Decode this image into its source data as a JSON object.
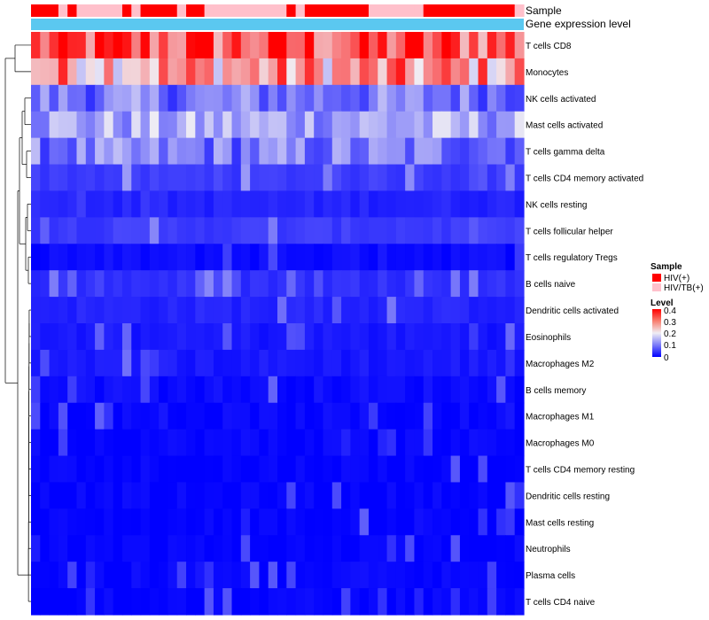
{
  "chart_data": {
    "type": "heatmap",
    "title": "",
    "annotation_tracks": [
      {
        "name": "Sample"
      },
      {
        "name": "Gene expression level"
      }
    ],
    "sample_groups": [
      "HIV(+)",
      "HIV(+)",
      "HIV(+)",
      "HIV/TB(+)",
      "HIV(+)",
      "HIV/TB(+)",
      "HIV/TB(+)",
      "HIV/TB(+)",
      "HIV/TB(+)",
      "HIV/TB(+)",
      "HIV(+)",
      "HIV/TB(+)",
      "HIV(+)",
      "HIV(+)",
      "HIV(+)",
      "HIV(+)",
      "HIV/TB(+)",
      "HIV(+)",
      "HIV(+)",
      "HIV/TB(+)",
      "HIV/TB(+)",
      "HIV/TB(+)",
      "HIV/TB(+)",
      "HIV/TB(+)",
      "HIV/TB(+)",
      "HIV/TB(+)",
      "HIV/TB(+)",
      "HIV/TB(+)",
      "HIV(+)",
      "HIV/TB(+)",
      "HIV(+)",
      "HIV(+)",
      "HIV(+)",
      "HIV(+)",
      "HIV(+)",
      "HIV(+)",
      "HIV(+)",
      "HIV/TB(+)",
      "HIV/TB(+)",
      "HIV/TB(+)",
      "HIV/TB(+)",
      "HIV/TB(+)",
      "HIV/TB(+)",
      "HIV(+)",
      "HIV(+)",
      "HIV(+)",
      "HIV(+)",
      "HIV(+)",
      "HIV(+)",
      "HIV(+)",
      "HIV(+)",
      "HIV(+)",
      "HIV(+)",
      "HIV/TB(+)"
    ],
    "rows": [
      "T cells CD8",
      "Monocytes",
      "NK cells activated",
      "Mast cells activated",
      "T cells gamma delta",
      "T cells CD4 memory activated",
      "NK cells resting",
      "T cells follicular helper",
      "T cells regulatory  Tregs",
      "B cells naive",
      "Dendritic cells activated",
      "Eosinophils",
      "Macrophages M2",
      "B cells memory",
      "Macrophages M1",
      "Macrophages M0",
      "T cells CD4 memory resting",
      "Dendritic cells resting",
      "Mast cells resting",
      "Neutrophils",
      "Plasma cells",
      "T cells CD4 naive"
    ],
    "n_columns": 54,
    "row_levels": [
      0.33,
      0.27,
      0.1,
      0.14,
      0.1,
      0.05,
      0.03,
      0.05,
      0.01,
      0.04,
      0.03,
      0.02,
      0.02,
      0.01,
      0.005,
      0.005,
      0.003,
      0.002,
      0.001,
      0.001,
      0.004,
      0.002
    ],
    "legend": {
      "sample_title": "Sample",
      "sample_entries": [
        {
          "label": "HIV(+)",
          "color": "#ff0000"
        },
        {
          "label": "HIV/TB(+)",
          "color": "#ffc0cb"
        }
      ],
      "level_title": "Level",
      "level_ticks": [
        "0.4",
        "0.3",
        "0.2",
        "0.1",
        "0"
      ],
      "level_range": [
        0,
        0.4
      ],
      "placement": "right"
    },
    "colors": {
      "low": "#0000ff",
      "mid": "#f0eef4",
      "high": "#ff0000",
      "expression_track": "#5bc8f0"
    }
  }
}
